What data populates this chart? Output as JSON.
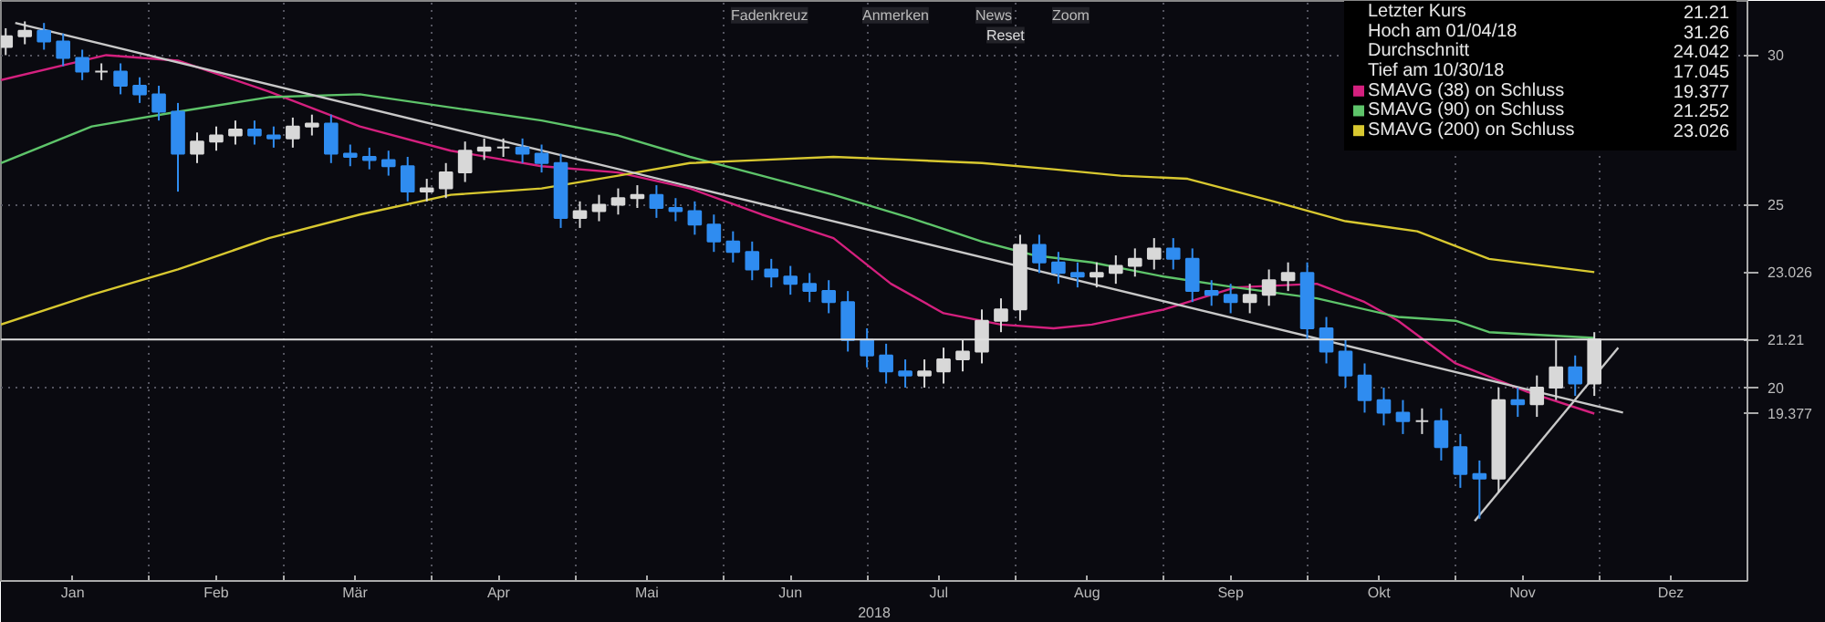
{
  "chart_data": {
    "type": "candlestick",
    "xlabel": "2018",
    "log": "y",
    "grid": true,
    "legend": "top right",
    "xlim": [
      "2018-01-01",
      "2019-01-01"
    ],
    "xticks": [
      {
        "value": "2018-01-16",
        "label": "Jan"
      },
      {
        "value": "2018-02-01",
        "label": null
      },
      {
        "value": "2018-02-15",
        "label": "Feb"
      },
      {
        "value": "2018-03-01",
        "label": null
      },
      {
        "value": "2018-03-16",
        "label": "Mär"
      },
      {
        "value": "2018-04-01",
        "label": null
      },
      {
        "value": "2018-04-15",
        "label": "Apr"
      },
      {
        "value": "2018-05-01",
        "label": null
      },
      {
        "value": "2018-05-16",
        "label": "Mai"
      },
      {
        "value": "2018-06-01",
        "label": null
      },
      {
        "value": "2018-06-15",
        "label": "Jun"
      },
      {
        "value": "2018-07-01",
        "label": null
      },
      {
        "value": "2018-07-16",
        "label": "Jul"
      },
      {
        "value": "2018-08-01",
        "label": null
      },
      {
        "value": "2018-08-16",
        "label": "Aug"
      },
      {
        "value": "2018-09-01",
        "label": null
      },
      {
        "value": "2018-09-15",
        "label": "Sep"
      },
      {
        "value": "2018-10-01",
        "label": null
      },
      {
        "value": "2018-10-16",
        "label": "Okt"
      },
      {
        "value": "2018-11-01",
        "label": null
      },
      {
        "value": "2018-11-15",
        "label": "Nov"
      },
      {
        "value": "2018-12-01",
        "label": null
      },
      {
        "value": "2018-12-16",
        "label": "Dez"
      }
    ],
    "ylim": [
      15.8,
      32.05
    ],
    "yticks": [
      20,
      25,
      30
    ],
    "ref_lines": [
      {
        "axis": "y",
        "value": 21.21,
        "label": "21.21",
        "color": "#e0e0e0"
      }
    ],
    "annotations": [
      "Fadenkreuz",
      "Anmerken",
      "News",
      "Zoom",
      "Reset",
      "Letzter Kurs",
      "21.21",
      "Hoch am 01/04/18",
      "31.26",
      "Durchschnitt",
      "24.042",
      "Tief am 10/30/18",
      "17.045",
      "19.377",
      "21.252",
      "23.026",
      "23.026",
      "19.377"
    ],
    "series": [
      {
        "type": "candlestick",
        "x": [
          "2018-01-02",
          "2018-01-06",
          "2018-01-10",
          "2018-01-14",
          "2018-01-18",
          "2018-01-22",
          "2018-01-26",
          "2018-01-30",
          "2018-02-03",
          "2018-02-07",
          "2018-02-11",
          "2018-02-15",
          "2018-02-19",
          "2018-02-23",
          "2018-02-27",
          "2018-03-03",
          "2018-03-07",
          "2018-03-11",
          "2018-03-15",
          "2018-03-19",
          "2018-03-23",
          "2018-03-27",
          "2018-03-31",
          "2018-04-04",
          "2018-04-08",
          "2018-04-12",
          "2018-04-16",
          "2018-04-20",
          "2018-04-24",
          "2018-04-28",
          "2018-05-02",
          "2018-05-06",
          "2018-05-10",
          "2018-05-14",
          "2018-05-18",
          "2018-05-22",
          "2018-05-26",
          "2018-05-30",
          "2018-06-03",
          "2018-06-07",
          "2018-06-11",
          "2018-06-15",
          "2018-06-19",
          "2018-06-23",
          "2018-06-27",
          "2018-07-01",
          "2018-07-05",
          "2018-07-09",
          "2018-07-13",
          "2018-07-17",
          "2018-07-21",
          "2018-07-25",
          "2018-07-29",
          "2018-08-02",
          "2018-08-06",
          "2018-08-10",
          "2018-08-14",
          "2018-08-18",
          "2018-08-22",
          "2018-08-26",
          "2018-08-30",
          "2018-09-03",
          "2018-09-07",
          "2018-09-11",
          "2018-09-15",
          "2018-09-19",
          "2018-09-23",
          "2018-09-27",
          "2018-10-01",
          "2018-10-05",
          "2018-10-09",
          "2018-10-13",
          "2018-10-17",
          "2018-10-21",
          "2018-10-25",
          "2018-10-29",
          "2018-11-02",
          "2018-11-06",
          "2018-11-10",
          "2018-11-14",
          "2018-11-18",
          "2018-11-22",
          "2018-11-26",
          "2018-11-30"
        ],
        "ohlc": [
          [
            30.3,
            31.0,
            30.0,
            30.7
          ],
          [
            30.7,
            31.26,
            30.4,
            30.9
          ],
          [
            30.9,
            31.2,
            30.2,
            30.5
          ],
          [
            30.5,
            30.8,
            29.6,
            29.9
          ],
          [
            29.9,
            30.2,
            29.1,
            29.4
          ],
          [
            29.4,
            29.7,
            29.1,
            29.4
          ],
          [
            29.4,
            29.7,
            28.6,
            28.9
          ],
          [
            28.9,
            29.2,
            28.3,
            28.6
          ],
          [
            28.6,
            28.9,
            27.7,
            28.0
          ],
          [
            28.0,
            28.3,
            25.4,
            26.6
          ],
          [
            26.6,
            27.3,
            26.3,
            27.0
          ],
          [
            27.0,
            27.5,
            26.7,
            27.2
          ],
          [
            27.2,
            27.7,
            26.9,
            27.4
          ],
          [
            27.4,
            27.7,
            26.9,
            27.2
          ],
          [
            27.2,
            27.5,
            26.8,
            27.1
          ],
          [
            27.1,
            27.8,
            26.8,
            27.5
          ],
          [
            27.5,
            27.9,
            27.2,
            27.6
          ],
          [
            27.6,
            27.9,
            26.3,
            26.6
          ],
          [
            26.6,
            26.9,
            26.2,
            26.5
          ],
          [
            26.5,
            26.8,
            26.1,
            26.4
          ],
          [
            26.4,
            26.7,
            25.9,
            26.2
          ],
          [
            26.2,
            26.5,
            25.1,
            25.4
          ],
          [
            25.4,
            25.8,
            25.1,
            25.5
          ],
          [
            25.5,
            26.3,
            25.2,
            26.0
          ],
          [
            26.0,
            27.0,
            25.7,
            26.7
          ],
          [
            26.7,
            27.1,
            26.4,
            26.8
          ],
          [
            26.8,
            27.1,
            26.5,
            26.8
          ],
          [
            26.8,
            27.1,
            26.3,
            26.6
          ],
          [
            26.6,
            26.9,
            26.0,
            26.3
          ],
          [
            26.3,
            26.6,
            24.3,
            24.6
          ],
          [
            24.6,
            25.1,
            24.3,
            24.8
          ],
          [
            24.8,
            25.3,
            24.5,
            25.0
          ],
          [
            25.0,
            25.5,
            24.7,
            25.2
          ],
          [
            25.2,
            25.6,
            24.9,
            25.3
          ],
          [
            25.3,
            25.6,
            24.6,
            24.9
          ],
          [
            24.9,
            25.2,
            24.5,
            24.8
          ],
          [
            24.8,
            25.1,
            24.1,
            24.4
          ],
          [
            24.4,
            24.7,
            23.6,
            23.9
          ],
          [
            23.9,
            24.2,
            23.3,
            23.6
          ],
          [
            23.6,
            23.9,
            22.8,
            23.1
          ],
          [
            23.1,
            23.4,
            22.6,
            22.9
          ],
          [
            22.9,
            23.2,
            22.4,
            22.7
          ],
          [
            22.7,
            23.0,
            22.2,
            22.5
          ],
          [
            22.5,
            22.8,
            21.9,
            22.2
          ],
          [
            22.2,
            22.5,
            20.9,
            21.2
          ],
          [
            21.2,
            21.5,
            20.5,
            20.8
          ],
          [
            20.8,
            21.1,
            20.1,
            20.4
          ],
          [
            20.4,
            20.7,
            20.0,
            20.3
          ],
          [
            20.3,
            20.7,
            20.0,
            20.4
          ],
          [
            20.4,
            21.0,
            20.1,
            20.7
          ],
          [
            20.7,
            21.2,
            20.4,
            20.9
          ],
          [
            20.9,
            22.0,
            20.6,
            21.7
          ],
          [
            21.7,
            22.3,
            21.4,
            22.0
          ],
          [
            22.0,
            24.1,
            21.7,
            23.8
          ],
          [
            23.8,
            24.1,
            23.0,
            23.3
          ],
          [
            23.3,
            23.6,
            22.7,
            23.0
          ],
          [
            23.0,
            23.3,
            22.6,
            22.9
          ],
          [
            22.9,
            23.3,
            22.6,
            23.0
          ],
          [
            23.0,
            23.5,
            22.7,
            23.2
          ],
          [
            23.2,
            23.7,
            22.9,
            23.4
          ],
          [
            23.4,
            24.0,
            23.1,
            23.7
          ],
          [
            23.7,
            24.0,
            23.1,
            23.4
          ],
          [
            23.4,
            23.7,
            22.2,
            22.5
          ],
          [
            22.5,
            22.8,
            22.1,
            22.4
          ],
          [
            22.4,
            22.7,
            21.9,
            22.2
          ],
          [
            22.2,
            22.7,
            21.9,
            22.4
          ],
          [
            22.4,
            23.1,
            22.1,
            22.8
          ],
          [
            22.8,
            23.3,
            22.5,
            23.0
          ],
          [
            23.0,
            23.3,
            21.2,
            21.5
          ],
          [
            21.5,
            21.8,
            20.6,
            20.9
          ],
          [
            20.9,
            21.2,
            20.0,
            20.3
          ],
          [
            20.3,
            20.6,
            19.4,
            19.7
          ],
          [
            19.7,
            20.0,
            19.1,
            19.4
          ],
          [
            19.4,
            19.7,
            18.9,
            19.2
          ],
          [
            19.2,
            19.5,
            18.9,
            19.2
          ],
          [
            19.2,
            19.5,
            18.3,
            18.6
          ],
          [
            18.6,
            18.9,
            17.7,
            18.0
          ],
          [
            18.0,
            18.3,
            17.045,
            17.9
          ],
          [
            17.9,
            20.0,
            17.6,
            19.7
          ],
          [
            19.7,
            20.0,
            19.3,
            19.6
          ],
          [
            19.6,
            20.3,
            19.3,
            20.0
          ],
          [
            20.0,
            21.2,
            19.7,
            20.5
          ],
          [
            20.5,
            20.8,
            19.8,
            20.1
          ],
          [
            20.1,
            21.4,
            19.8,
            21.21
          ]
        ],
        "colors": [
          "#d8d8d8",
          "#d8d8d8",
          "#2f8cf0",
          "#2f8cf0",
          "#2f8cf0",
          "#d8d8d8",
          "#2f8cf0",
          "#2f8cf0",
          "#2f8cf0",
          "#2f8cf0",
          "#d8d8d8",
          "#d8d8d8",
          "#d8d8d8",
          "#2f8cf0",
          "#2f8cf0",
          "#d8d8d8",
          "#d8d8d8",
          "#2f8cf0",
          "#2f8cf0",
          "#2f8cf0",
          "#2f8cf0",
          "#2f8cf0",
          "#d8d8d8",
          "#d8d8d8",
          "#d8d8d8",
          "#d8d8d8",
          "#d8d8d8",
          "#2f8cf0",
          "#2f8cf0",
          "#2f8cf0",
          "#d8d8d8",
          "#d8d8d8",
          "#d8d8d8",
          "#d8d8d8",
          "#2f8cf0",
          "#2f8cf0",
          "#2f8cf0",
          "#2f8cf0",
          "#2f8cf0",
          "#2f8cf0",
          "#2f8cf0",
          "#2f8cf0",
          "#2f8cf0",
          "#2f8cf0",
          "#2f8cf0",
          "#2f8cf0",
          "#2f8cf0",
          "#2f8cf0",
          "#d8d8d8",
          "#d8d8d8",
          "#d8d8d8",
          "#d8d8d8",
          "#d8d8d8",
          "#d8d8d8",
          "#2f8cf0",
          "#2f8cf0",
          "#2f8cf0",
          "#d8d8d8",
          "#d8d8d8",
          "#d8d8d8",
          "#d8d8d8",
          "#2f8cf0",
          "#2f8cf0",
          "#2f8cf0",
          "#2f8cf0",
          "#d8d8d8",
          "#d8d8d8",
          "#d8d8d8",
          "#2f8cf0",
          "#2f8cf0",
          "#2f8cf0",
          "#2f8cf0",
          "#2f8cf0",
          "#2f8cf0",
          "#d8d8d8",
          "#2f8cf0",
          "#2f8cf0",
          "#2f8cf0",
          "#d8d8d8",
          "#2f8cf0",
          "#d8d8d8",
          "#d8d8d8",
          "#2f8cf0",
          "#d8d8d8"
        ]
      },
      {
        "type": "line",
        "name": "SMAVG (38) on Schluss",
        "color": "#d4207e",
        "x": [
          "2018-01-01",
          "2018-01-23",
          "2018-02-07",
          "2018-02-26",
          "2018-03-17",
          "2018-04-05",
          "2018-04-24",
          "2018-05-10",
          "2018-05-25",
          "2018-06-09",
          "2018-06-24",
          "2018-07-06",
          "2018-07-17",
          "2018-07-29",
          "2018-08-09",
          "2018-08-17",
          "2018-09-01",
          "2018-09-16",
          "2018-10-03",
          "2018-10-13",
          "2018-10-20",
          "2018-11-01",
          "2018-11-16",
          "2018-11-30"
        ],
        "values": [
          29.1,
          30.0,
          29.8,
          28.7,
          27.5,
          26.7,
          26.2,
          26.0,
          25.5,
          24.7,
          24.0,
          22.7,
          21.9,
          21.6,
          21.5,
          21.6,
          22.0,
          22.6,
          22.7,
          22.2,
          21.7,
          20.6,
          19.9,
          19.377
        ]
      },
      {
        "type": "line",
        "name": "SMAVG (90) on Schluss",
        "color": "#5ec46a",
        "x": [
          "2018-01-01",
          "2018-01-20",
          "2018-02-07",
          "2018-02-26",
          "2018-03-17",
          "2018-04-24",
          "2018-05-10",
          "2018-05-25",
          "2018-06-09",
          "2018-06-24",
          "2018-07-10",
          "2018-07-25",
          "2018-08-05",
          "2018-08-17",
          "2018-09-01",
          "2018-09-16",
          "2018-10-03",
          "2018-10-20",
          "2018-11-01",
          "2018-11-08",
          "2018-11-30"
        ],
        "values": [
          26.3,
          27.5,
          28.0,
          28.5,
          28.6,
          27.7,
          27.2,
          26.5,
          25.9,
          25.3,
          24.6,
          23.9,
          23.5,
          23.3,
          22.9,
          22.6,
          22.3,
          21.8,
          21.7,
          21.4,
          21.252
        ]
      },
      {
        "type": "line",
        "name": "SMAVG (200) on Schluss",
        "color": "#d8c830",
        "x": [
          "2018-01-01",
          "2018-01-20",
          "2018-02-07",
          "2018-02-26",
          "2018-03-17",
          "2018-04-05",
          "2018-04-24",
          "2018-05-10",
          "2018-05-25",
          "2018-06-09",
          "2018-06-24",
          "2018-07-10",
          "2018-07-25",
          "2018-08-09",
          "2018-08-23",
          "2018-09-06",
          "2018-09-24",
          "2018-10-09",
          "2018-10-24",
          "2018-11-08",
          "2018-11-30"
        ],
        "values": [
          21.6,
          22.4,
          23.1,
          24.0,
          24.7,
          25.3,
          25.5,
          25.9,
          26.3,
          26.4,
          26.5,
          26.4,
          26.3,
          26.1,
          25.9,
          25.8,
          25.1,
          24.5,
          24.2,
          23.4,
          23.026
        ]
      },
      {
        "type": "line",
        "color": "#c8c8c8",
        "x": [
          "2018-01-04",
          "2018-12-06"
        ],
        "values": [
          31.2,
          19.4
        ]
      },
      {
        "type": "line",
        "color": "#c8c8c8",
        "x": [
          "2018-11-05",
          "2018-12-05"
        ],
        "values": [
          17.0,
          21.0
        ]
      }
    ]
  }
}
